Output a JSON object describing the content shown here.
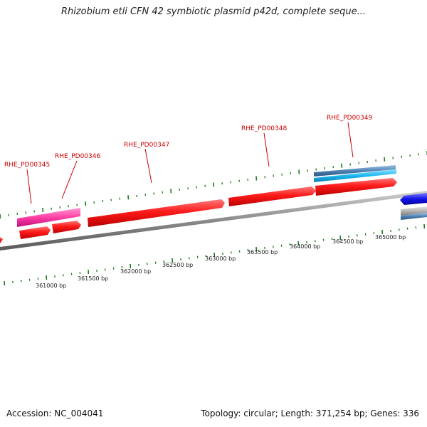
{
  "header": {
    "title": "Rhizobium etli CFN 42 symbiotic plasmid p42d, complete seque..."
  },
  "footer": {
    "accession": "Accession: NC_004041",
    "summary": "Topology: circular; Length: 371,254 bp; Genes: 336"
  },
  "colors": {
    "gene_red": "#ff1a1a",
    "gene_pink": "#ff3fa6",
    "gene_steel": "#4f82b4",
    "gene_cyan": "#1cb8f0",
    "gene_blue": "#1414e6",
    "gene_grey": "#b4b4b4",
    "backbone": "#8a8a8a",
    "tick": "#1f7a1f",
    "label": "#cc0000"
  },
  "gene_labels": [
    {
      "text": "RHE_PD00345"
    },
    {
      "text": "RHE_PD00346"
    },
    {
      "text": "RHE_PD00347"
    },
    {
      "text": "RHE_PD00348"
    },
    {
      "text": "RHE_PD00349"
    }
  ],
  "scale_labels": [
    {
      "text": "361000 bp"
    },
    {
      "text": "361500 bp"
    },
    {
      "text": "362000 bp"
    },
    {
      "text": "362500 bp"
    },
    {
      "text": "363000 bp"
    },
    {
      "text": "363500 bp"
    },
    {
      "text": "364000 bp"
    },
    {
      "text": "364500 bp"
    },
    {
      "text": "365000 bp"
    }
  ]
}
